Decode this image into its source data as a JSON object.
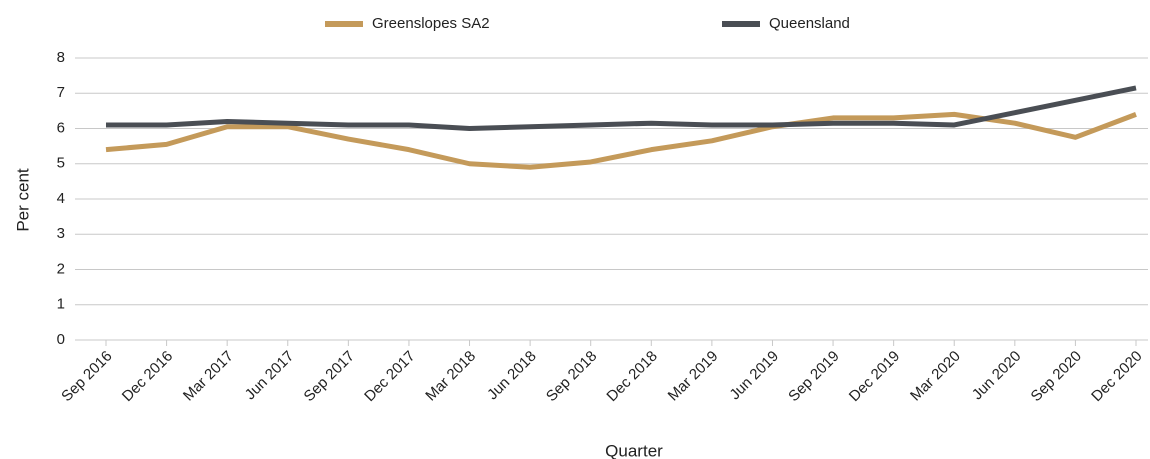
{
  "chart_data": {
    "type": "line",
    "xlabel": "Quarter",
    "ylabel": "Per cent",
    "categories": [
      "Sep 2016",
      "Dec 2016",
      "Mar 2017",
      "Jun 2017",
      "Sep 2017",
      "Dec 2017",
      "Mar 2018",
      "Jun 2018",
      "Sep 2018",
      "Dec 2018",
      "Mar 2019",
      "Jun 2019",
      "Sep 2019",
      "Dec 2019",
      "Mar 2020",
      "Jun 2020",
      "Sep 2020",
      "Dec 2020"
    ],
    "series": [
      {
        "name": "Greenslopes SA2",
        "color": "#c49a5a",
        "values": [
          5.4,
          5.55,
          6.05,
          6.05,
          5.7,
          5.4,
          5.0,
          4.9,
          5.05,
          5.4,
          5.65,
          6.05,
          6.3,
          6.3,
          6.4,
          6.15,
          5.75,
          6.4
        ]
      },
      {
        "name": "Queensland",
        "color": "#4a4e54",
        "values": [
          6.1,
          6.1,
          6.2,
          6.15,
          6.1,
          6.1,
          6.0,
          6.05,
          6.1,
          6.15,
          6.1,
          6.1,
          6.15,
          6.15,
          6.1,
          6.45,
          6.8,
          7.15
        ]
      }
    ],
    "ylim": [
      0,
      8
    ],
    "yticks": [
      0,
      1,
      2,
      3,
      4,
      5,
      6,
      7,
      8
    ],
    "grid": true
  }
}
